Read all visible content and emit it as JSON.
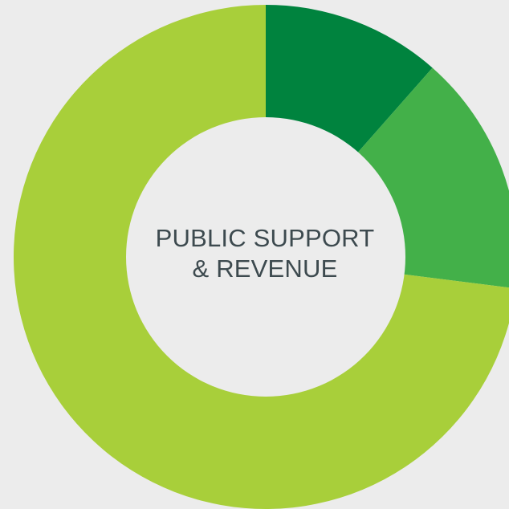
{
  "chart_data": {
    "type": "pie",
    "title": "PUBLIC SUPPORT & REVENUE",
    "title_lines": [
      "PUBLIC SUPPORT",
      "& REVENUE"
    ],
    "values": [
      11.5,
      15.5,
      73.0
    ],
    "colors": [
      "#00833e",
      "#43b049",
      "#a8cf3a"
    ],
    "donut": true,
    "legend": "none"
  },
  "colors": {
    "background": "#ececec",
    "hole": "#ececec",
    "label_text": "#3d4a4f"
  }
}
